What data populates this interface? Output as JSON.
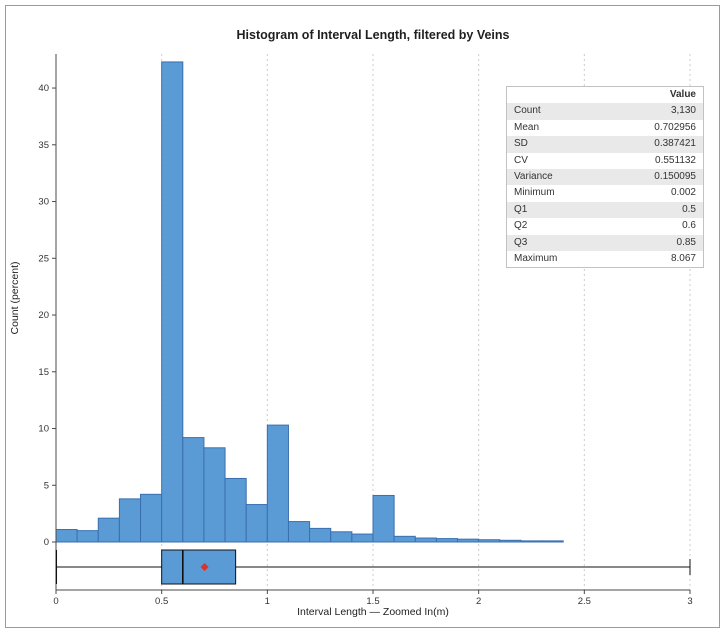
{
  "title": "Histogram of Interval Length, filtered by Veins",
  "xlabel": "Interval Length — Zoomed In(m)",
  "ylabel": "Count (percent)",
  "stats_table": {
    "header": "Value",
    "rows": [
      {
        "label": "Count",
        "value": "3,130"
      },
      {
        "label": "Mean",
        "value": "0.702956"
      },
      {
        "label": "SD",
        "value": "0.387421"
      },
      {
        "label": "CV",
        "value": "0.551132"
      },
      {
        "label": "Variance",
        "value": "0.150095"
      },
      {
        "label": "Minimum",
        "value": "0.002"
      },
      {
        "label": "Q1",
        "value": "0.5"
      },
      {
        "label": "Q2",
        "value": "0.6"
      },
      {
        "label": "Q3",
        "value": "0.85"
      },
      {
        "label": "Maximum",
        "value": "8.067"
      }
    ]
  },
  "chart_data": {
    "type": "bar",
    "subtype": "histogram-with-boxplot",
    "title": "Histogram of Interval Length, filtered by Veins",
    "xlabel": "Interval Length — Zoomed In(m)",
    "ylabel": "Count (percent)",
    "xlim": [
      0,
      3
    ],
    "ylim": [
      0,
      43
    ],
    "x_ticks": [
      0,
      0.5,
      1,
      1.5,
      2,
      2.5,
      3
    ],
    "y_ticks": [
      0,
      5,
      10,
      15,
      20,
      25,
      30,
      35,
      40
    ],
    "grid": "vertical-dashed",
    "legend": "none",
    "bin_start": 0,
    "bin_width": 0.1,
    "values": [
      1.1,
      1,
      2.1,
      3.8,
      4.2,
      42.3,
      9.2,
      8.3,
      5.6,
      3.3,
      10.3,
      1.8,
      1.2,
      0.9,
      0.7,
      4.1,
      0.5,
      0.35,
      0.3,
      0.25,
      0.2,
      0.15,
      0.1,
      0.1
    ],
    "bar_color": "#5b9bd5",
    "bar_border": "#3a6fb0",
    "boxplot": {
      "min": 0.002,
      "q1": 0.5,
      "median": 0.6,
      "q3": 0.85,
      "mean": 0.702956,
      "max_shown": 3,
      "mean_marker_color": "#d9342b"
    }
  }
}
